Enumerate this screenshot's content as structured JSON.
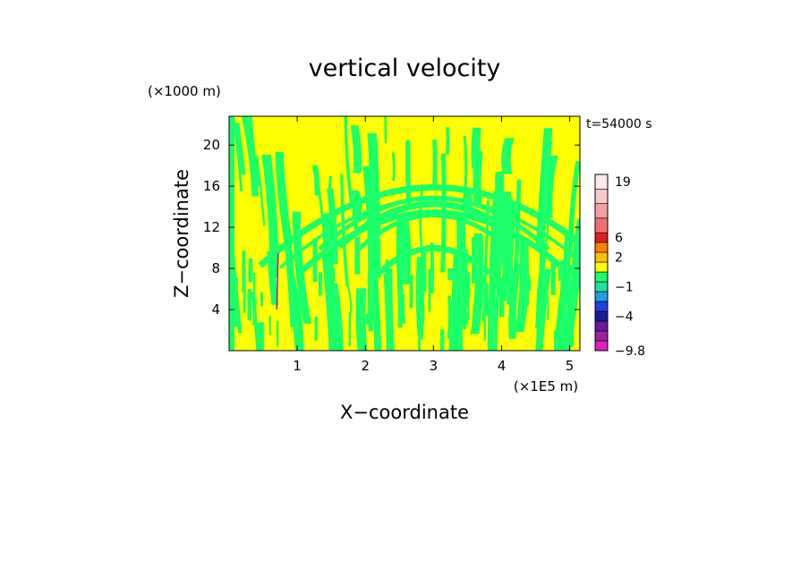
{
  "chart_data": {
    "type": "heatmap",
    "title": "vertical velocity",
    "xlabel": "X−coordinate",
    "ylabel": "Z−coordinate",
    "x_unit": "(×1E5 m)",
    "y_unit": "(×1000 m)",
    "time_label": "t=54000 s",
    "xlim": [
      0,
      5.15
    ],
    "ylim": [
      0,
      22.8
    ],
    "x_ticks": [
      1,
      2,
      3,
      4,
      5
    ],
    "y_ticks": [
      4,
      8,
      12,
      16,
      20
    ],
    "colorbar": {
      "levels": [
        {
          "value": -9.8,
          "color": "#e020c0"
        },
        {
          "value": -7,
          "color": "#a020a0"
        },
        {
          "value": -5,
          "color": "#6a1a9a"
        },
        {
          "value": -4,
          "color": "#1a1a9a"
        },
        {
          "value": -3,
          "color": "#2040e0"
        },
        {
          "value": -2,
          "color": "#20a0e0"
        },
        {
          "value": -1,
          "color": "#20e0a0"
        },
        {
          "value": 0,
          "color": "#1aff6a"
        },
        {
          "value": 1,
          "color": "#ffff00"
        },
        {
          "value": 2,
          "color": "#ffc000"
        },
        {
          "value": 3,
          "color": "#ff8000"
        },
        {
          "value": 4,
          "color": "#e02020"
        },
        {
          "value": 6,
          "color": "#f07070"
        },
        {
          "value": 10,
          "color": "#f5a0a0"
        },
        {
          "value": 14,
          "color": "#f8c8c8"
        },
        {
          "value": 19,
          "color": "#ffe8e8"
        }
      ],
      "tick_labels": [
        "19",
        "6",
        "2",
        "−1",
        "−4",
        "−9.8"
      ]
    },
    "dominant_values": {
      "negative_small": "#1aff6a",
      "positive_small": "#ffff00"
    }
  }
}
